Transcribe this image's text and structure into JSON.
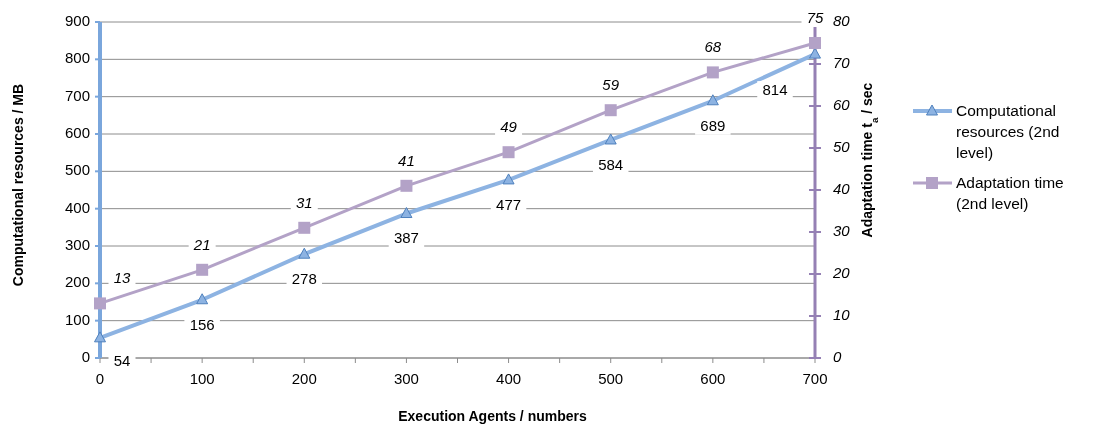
{
  "chart_data": {
    "type": "line",
    "xlabel": "Execution Agents / numbers",
    "ylabel": "Computational resources / MB",
    "y2label": "Adaptation time t$_{a}$ / sec",
    "x": [
      0,
      100,
      200,
      300,
      400,
      500,
      600,
      700
    ],
    "series": [
      {
        "name": "Computational resources (2nd level)",
        "color": "#8db3e2",
        "values": [
          54,
          156,
          278,
          387,
          477,
          584,
          689,
          814
        ],
        "marker": "triangle"
      },
      {
        "name": "Adaptation time (2nd level)",
        "color": "#b3a2c7",
        "values": [
          13,
          21,
          31,
          41,
          49,
          59,
          68,
          75
        ],
        "marker": "square",
        "axis": "y2"
      }
    ],
    "xlim": [
      0,
      700
    ],
    "xticks": [
      0,
      {
        "value": 50,
        "label": null
      },
      100,
      {
        "value": 150,
        "label": null
      },
      200,
      {
        "value": 250,
        "label": null
      },
      300,
      {
        "value": 350,
        "label": null
      },
      400,
      {
        "value": 450,
        "label": null
      },
      500,
      {
        "value": 550,
        "label": null
      },
      600,
      {
        "value": 650,
        "label": null
      },
      700
    ],
    "ylim": [
      0,
      900
    ],
    "yticks": [
      0,
      100,
      200,
      300,
      400,
      500,
      600,
      700,
      800,
      900
    ],
    "y2lim": [
      0,
      80
    ],
    "y2ticks": [
      0,
      10,
      20,
      30,
      40,
      50,
      60,
      70,
      80
    ],
    "grid": "y",
    "legend": "right",
    "data_labels": true
  }
}
